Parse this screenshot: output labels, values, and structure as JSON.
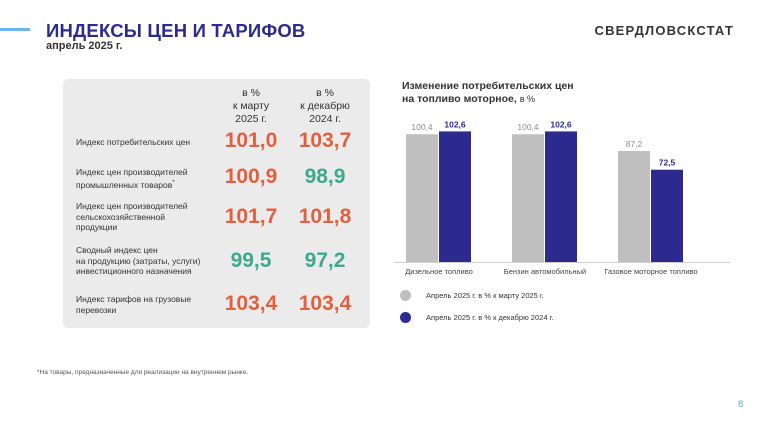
{
  "header": {
    "title": "ИНДЕКСЫ ЦЕН И ТАРИФОВ",
    "subtitle": "апрель 2025 г.",
    "brand": "СВЕРДЛОВСКСТАТ"
  },
  "table": {
    "col1_header": [
      "в %",
      "к марту",
      "2025 г."
    ],
    "col2_header": [
      "в %",
      "к декабрю",
      "2024 г."
    ],
    "rows": [
      {
        "label": [
          "Индекс потребительских цен"
        ],
        "v1": "101,0",
        "v2": "103,7",
        "color1": "#e0603f",
        "color2": "#e0603f"
      },
      {
        "label": [
          "Индекс цен производителей",
          "промышленных товаров"
        ],
        "footnote_mark": "*",
        "v1": "100,9",
        "v2": "98,9",
        "color1": "#e0603f",
        "color2": "#3ea98b"
      },
      {
        "label": [
          "Индекс цен производителей",
          "сельскохозяйственной",
          "продукции"
        ],
        "v1": "101,7",
        "v2": "101,8",
        "color1": "#e0603f",
        "color2": "#e0603f"
      },
      {
        "label": [
          "Сводный индекс цен",
          "на продукцию (затраты, услуги)",
          "инвестиционного назначения"
        ],
        "v1": "99,5",
        "v2": "97,2",
        "color1": "#3ea98b",
        "color2": "#3ea98b"
      },
      {
        "label": [
          "Индекс тарифов на грузовые",
          "перевозки"
        ],
        "v1": "103,4",
        "v2": "103,4",
        "color1": "#e0603f",
        "color2": "#e0603f"
      }
    ]
  },
  "footnote": "*На товары, предназначенные для реализации на внутреннем рынке.",
  "page_number": "8",
  "chart_title": {
    "line1": "Изменение потребительских цен",
    "line2": "на топливо моторное,",
    "unit": "в %"
  },
  "chart_data": {
    "type": "bar",
    "categories": [
      "Дизельное топливо",
      "Бензин автомобильный",
      "Газовое моторное топливо"
    ],
    "series": [
      {
        "name": "Апрель 2025 г. в % к марту 2025 г.",
        "values": [
          100.4,
          100.4,
          87.2
        ],
        "labels": [
          "100,4",
          "100,4",
          "87,2"
        ],
        "color": "#bfbfbf",
        "label_color": "#8c8c8c"
      },
      {
        "name": "Апрель 2025 г. в % к декабрю 2024 г.",
        "values": [
          102.6,
          102.6,
          72.5
        ],
        "labels": [
          "102,6",
          "102,6",
          "72,5"
        ],
        "color": "#2d2a8f",
        "label_color": "#2d2a8f"
      }
    ],
    "ylim": [
      0,
      110
    ],
    "legend_position": "bottom"
  },
  "legend": [
    {
      "label": "Апрель 2025 г. в % к марту 2025 г.",
      "color": "#bfbfbf"
    },
    {
      "label": "Апрель 2025 г. в % к декабрю 2024 г.",
      "color": "#2d2a8f"
    }
  ]
}
